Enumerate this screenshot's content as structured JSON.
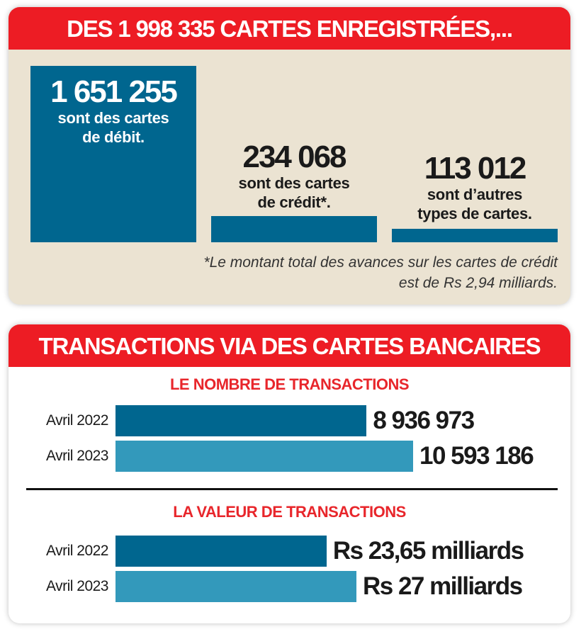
{
  "colors": {
    "red": "#ed1c24",
    "dark_blue": "#00668f",
    "light_blue": "#3399bb",
    "beige": "#ebe3d2"
  },
  "chart_data": [
    {
      "type": "bar",
      "title": "DES 1 998 335 CARTES ENREGISTRÉES,...",
      "categories": [
        "cartes de débit",
        "cartes de crédit",
        "autres types de cartes"
      ],
      "values": [
        1651255,
        234068,
        113012
      ],
      "value_labels": [
        "1 651 255",
        "234 068",
        "113 012"
      ],
      "labels": [
        [
          "sont des cartes",
          "de débit."
        ],
        [
          "sont des cartes",
          "de crédit*."
        ],
        [
          "sont d’autres",
          "types de cartes."
        ]
      ],
      "footnote": [
        "*Le montant total des avances sur les cartes de crédit",
        "est de Rs 2,94 milliards."
      ]
    },
    {
      "type": "bar",
      "orientation": "horizontal",
      "title": "TRANSACTIONS VIA DES CARTES BANCAIRES",
      "panels": [
        {
          "subtitle": "LE NOMBRE DE TRANSACTIONS",
          "categories": [
            "Avril 2022",
            "Avril 2023"
          ],
          "values": [
            8936973,
            10593186
          ],
          "value_labels": [
            "8 936 973",
            "10 593 186"
          ]
        },
        {
          "subtitle": "LA VALEUR DE TRANSACTIONS",
          "unit": "milliards Rs",
          "categories": [
            "Avril 2022",
            "Avril 2023"
          ],
          "values": [
            23.65,
            27
          ],
          "value_labels": [
            "Rs 23,65 milliards",
            "Rs 27 milliards"
          ]
        }
      ]
    }
  ]
}
